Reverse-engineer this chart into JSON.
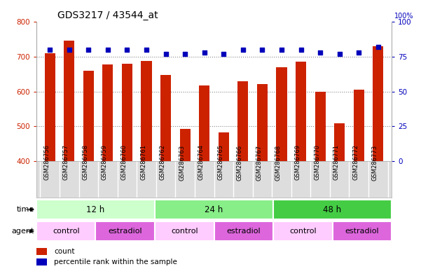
{
  "title": "GDS3217 / 43544_at",
  "samples": [
    "GSM286756",
    "GSM286757",
    "GSM286758",
    "GSM286759",
    "GSM286760",
    "GSM286761",
    "GSM286762",
    "GSM286763",
    "GSM286764",
    "GSM286765",
    "GSM286766",
    "GSM286767",
    "GSM286768",
    "GSM286769",
    "GSM286770",
    "GSM286771",
    "GSM286772",
    "GSM286773"
  ],
  "counts": [
    710,
    745,
    660,
    677,
    680,
    688,
    648,
    493,
    618,
    483,
    630,
    622,
    670,
    685,
    600,
    508,
    606,
    730
  ],
  "percentiles": [
    80,
    80,
    80,
    80,
    80,
    80,
    77,
    77,
    78,
    77,
    80,
    80,
    80,
    80,
    78,
    77,
    78,
    82
  ],
  "ylim_left": [
    400,
    800
  ],
  "ylim_right": [
    0,
    100
  ],
  "yticks_left": [
    400,
    500,
    600,
    700,
    800
  ],
  "yticks_right": [
    0,
    25,
    50,
    75,
    100
  ],
  "bar_color": "#cc2200",
  "dot_color": "#0000bb",
  "grid_color": "#888888",
  "time_groups": [
    {
      "label": "12 h",
      "start": 0,
      "end": 6,
      "color": "#ccffcc"
    },
    {
      "label": "24 h",
      "start": 6,
      "end": 12,
      "color": "#88ee88"
    },
    {
      "label": "48 h",
      "start": 12,
      "end": 18,
      "color": "#44cc44"
    }
  ],
  "agent_groups": [
    {
      "label": "control",
      "start": 0,
      "end": 3,
      "color": "#ffccff"
    },
    {
      "label": "estradiol",
      "start": 3,
      "end": 6,
      "color": "#dd66dd"
    },
    {
      "label": "control",
      "start": 6,
      "end": 9,
      "color": "#ffccff"
    },
    {
      "label": "estradiol",
      "start": 9,
      "end": 12,
      "color": "#dd66dd"
    },
    {
      "label": "control",
      "start": 12,
      "end": 15,
      "color": "#ffccff"
    },
    {
      "label": "estradiol",
      "start": 15,
      "end": 18,
      "color": "#dd66dd"
    }
  ],
  "legend_count_color": "#cc2200",
  "legend_dot_color": "#0000bb",
  "tick_label_color_left": "#cc2200",
  "tick_label_color_right": "#0000bb",
  "title_fontsize": 10
}
